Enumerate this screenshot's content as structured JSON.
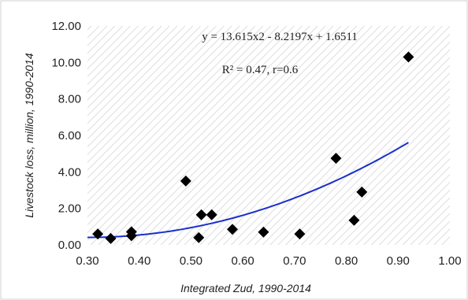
{
  "chart_data": {
    "type": "scatter",
    "title": "",
    "xlabel": "Integrated  Zud, 1990-2014",
    "ylabel": "Livestock loss, million, 1990-2014",
    "xlim": [
      0.3,
      1.0
    ],
    "ylim": [
      0.0,
      12.0
    ],
    "x_ticks": [
      "0.30",
      "0.40",
      "0.50",
      "0.60",
      "0.70",
      "0.80",
      "0.90",
      "1.00"
    ],
    "y_ticks": [
      "0.00",
      "2.00",
      "4.00",
      "6.00",
      "8.00",
      "10.00",
      "12.00"
    ],
    "grid": "diagonal hatch background",
    "legend": "none",
    "points": [
      {
        "x": 0.32,
        "y": 0.6
      },
      {
        "x": 0.345,
        "y": 0.35
      },
      {
        "x": 0.385,
        "y": 0.5
      },
      {
        "x": 0.385,
        "y": 0.72
      },
      {
        "x": 0.49,
        "y": 3.5
      },
      {
        "x": 0.515,
        "y": 0.4
      },
      {
        "x": 0.52,
        "y": 1.65
      },
      {
        "x": 0.54,
        "y": 1.65
      },
      {
        "x": 0.58,
        "y": 0.85
      },
      {
        "x": 0.64,
        "y": 0.7
      },
      {
        "x": 0.71,
        "y": 0.6
      },
      {
        "x": 0.78,
        "y": 4.75
      },
      {
        "x": 0.815,
        "y": 1.35
      },
      {
        "x": 0.83,
        "y": 2.9
      },
      {
        "x": 0.92,
        "y": 10.3
      }
    ],
    "trendline": {
      "type": "polynomial",
      "a": 13.615,
      "b": -8.2197,
      "c": 1.6511,
      "x_range": [
        0.3,
        0.92
      ]
    },
    "annotations": [
      "y = 13.615x2 - 8.2197x + 1.6511",
      "R² = 0.47, r=0.6"
    ],
    "colors": {
      "points": "#000000",
      "trendline": "#1a2fcc",
      "hatch": "#cfcfcf",
      "border": "#d0d0d0"
    }
  }
}
